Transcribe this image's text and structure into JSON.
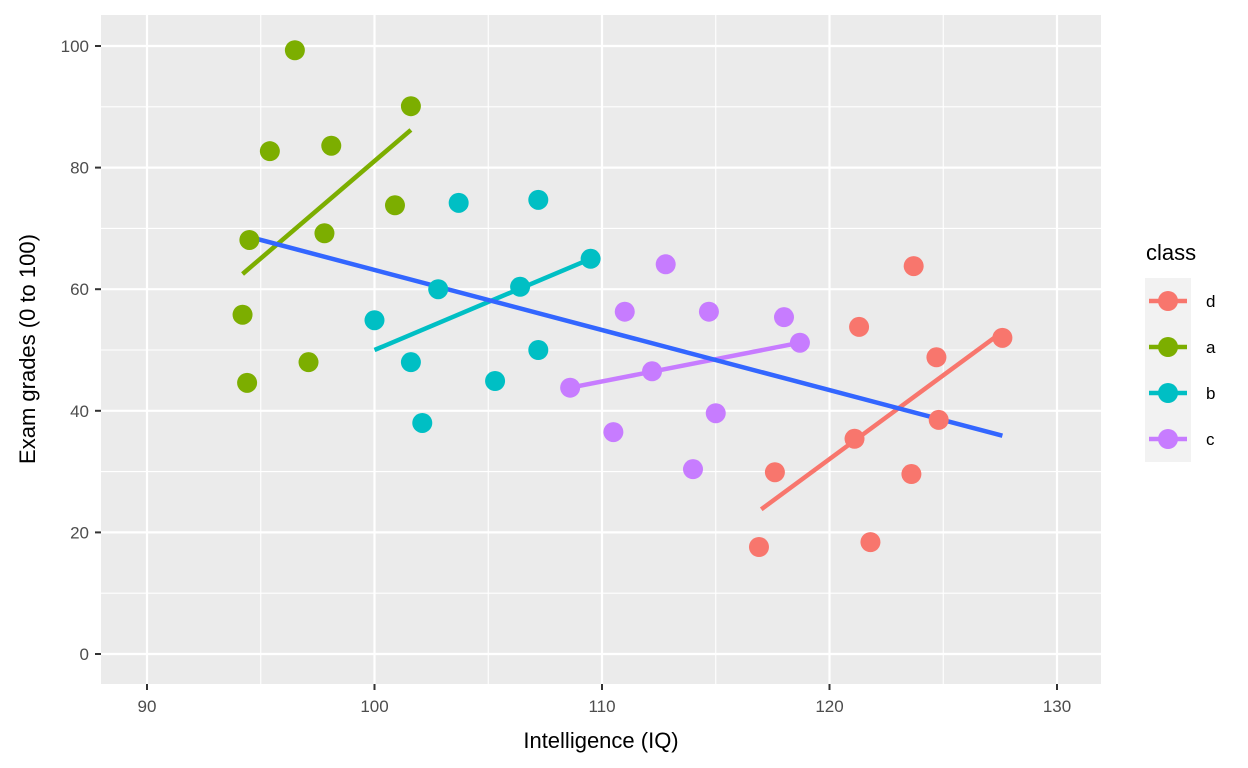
{
  "chart_data": {
    "type": "scatter",
    "title": "",
    "xlabel": "Intelligence (IQ)",
    "ylabel": "Exam grades (0 to 100)",
    "xlim": [
      88,
      132
    ],
    "ylim": [
      -5,
      105
    ],
    "x_ticks": [
      90,
      100,
      110,
      120,
      130
    ],
    "y_ticks": [
      0,
      20,
      40,
      60,
      80,
      100
    ],
    "grid": true,
    "legend": {
      "title": "class",
      "position": "right",
      "entries": [
        "d",
        "a",
        "b",
        "c"
      ]
    },
    "series": [
      {
        "name": "d",
        "color": "#F8766D",
        "points": [
          [
            123.7,
            63.8
          ],
          [
            121.3,
            53.8
          ],
          [
            127.6,
            52.0
          ],
          [
            124.7,
            48.8
          ],
          [
            124.8,
            38.5
          ],
          [
            121.1,
            35.4
          ],
          [
            117.6,
            29.9
          ],
          [
            123.6,
            29.6
          ],
          [
            121.8,
            18.4
          ],
          [
            116.9,
            17.6
          ]
        ],
        "fit_line": [
          [
            117.0,
            23.8
          ],
          [
            127.6,
            53.0
          ]
        ]
      },
      {
        "name": "a",
        "color": "#7CAE00",
        "points": [
          [
            96.5,
            99.3
          ],
          [
            101.6,
            90.1
          ],
          [
            95.4,
            82.7
          ],
          [
            98.1,
            83.6
          ],
          [
            100.9,
            73.8
          ],
          [
            94.5,
            68.1
          ],
          [
            97.8,
            69.2
          ],
          [
            94.2,
            55.8
          ],
          [
            94.4,
            44.6
          ],
          [
            97.1,
            48.0
          ]
        ],
        "fit_line": [
          [
            94.2,
            62.5
          ],
          [
            101.6,
            86.2
          ]
        ]
      },
      {
        "name": "b",
        "color": "#00BFC4",
        "points": [
          [
            103.7,
            74.2
          ],
          [
            107.2,
            74.7
          ],
          [
            109.5,
            65.0
          ],
          [
            102.8,
            60.0
          ],
          [
            106.4,
            60.4
          ],
          [
            100.0,
            54.9
          ],
          [
            107.2,
            50.0
          ],
          [
            101.6,
            48.0
          ],
          [
            105.3,
            44.9
          ],
          [
            102.1,
            38.0
          ]
        ],
        "fit_line": [
          [
            100.0,
            50.0
          ],
          [
            109.5,
            65.0
          ]
        ]
      },
      {
        "name": "c",
        "color": "#C77CFF",
        "points": [
          [
            112.8,
            64.1
          ],
          [
            111.0,
            56.3
          ],
          [
            114.7,
            56.3
          ],
          [
            118.0,
            55.4
          ],
          [
            118.7,
            51.2
          ],
          [
            112.2,
            46.5
          ],
          [
            108.6,
            43.8
          ],
          [
            115.0,
            39.6
          ],
          [
            110.5,
            36.5
          ],
          [
            114.0,
            30.4
          ]
        ],
        "fit_line": [
          [
            108.6,
            43.8
          ],
          [
            118.7,
            51.2
          ]
        ]
      }
    ],
    "overall_fit": {
      "name": "all",
      "color": "#3366FF",
      "line": [
        [
          94.5,
          68.6
        ],
        [
          127.6,
          35.9
        ]
      ]
    }
  },
  "panel": {
    "background": "#EBEBEB",
    "grid_color": "#FFFFFF"
  }
}
